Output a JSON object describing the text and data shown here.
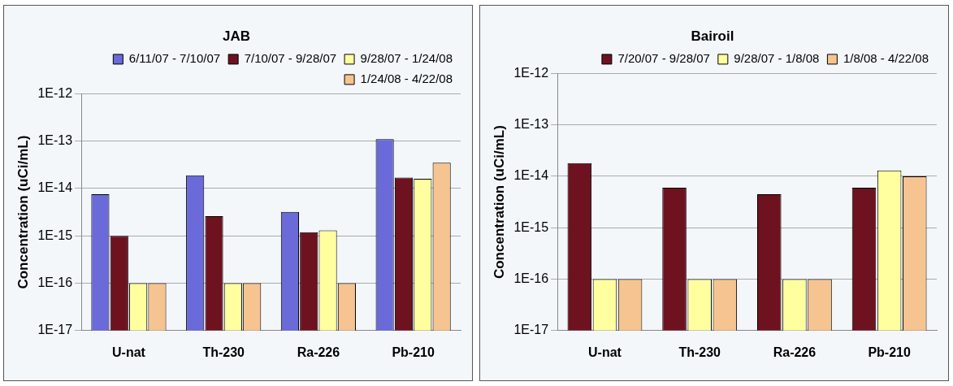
{
  "chart_data": [
    {
      "type": "bar",
      "title": "JAB",
      "ylabel": "Concentration (uCi/mL)",
      "categories": [
        "U-nat",
        "Th-230",
        "Ra-226",
        "Pb-210"
      ],
      "log": "y",
      "grid": "y",
      "legend": "top right",
      "ylim": [
        1e-17,
        1e-12
      ],
      "yticks": [
        {
          "value": 1e-17,
          "label": "1E-17"
        },
        {
          "value": 1e-16,
          "label": "1E-16"
        },
        {
          "value": 1e-15,
          "label": "1E-15"
        },
        {
          "value": 1e-14,
          "label": "1E-14"
        },
        {
          "value": 1e-13,
          "label": "1E-13"
        },
        {
          "value": 1e-12,
          "label": "1E-12"
        }
      ],
      "series": [
        {
          "name": "6/11/07 - 7/10/07",
          "color": "#6a6ad8",
          "values": [
            7.6e-15,
            1.9e-14,
            3.2e-15,
            1.1e-13
          ]
        },
        {
          "name": "7/10/07 - 9/28/07",
          "color": "#6e1220",
          "values": [
            1e-15,
            2.6e-15,
            1.2e-15,
            1.7e-14
          ]
        },
        {
          "name": "9/28/07 - 1/24/08",
          "color": "#ffffa0",
          "values": [
            1e-16,
            1e-16,
            1.3e-15,
            1.6e-14
          ]
        },
        {
          "name": "1/24/08 - 4/22/08",
          "color": "#f6c490",
          "values": [
            1e-16,
            1e-16,
            1e-16,
            3.5e-14
          ]
        }
      ]
    },
    {
      "type": "bar",
      "title": "Bairoil",
      "ylabel": "Concentration (uCi/mL)",
      "categories": [
        "U-nat",
        "Th-230",
        "Ra-226",
        "Pb-210"
      ],
      "log": "y",
      "grid": "y",
      "legend": "top right",
      "ylim": [
        1e-17,
        1e-12
      ],
      "yticks": [
        {
          "value": 1e-17,
          "label": "1E-17"
        },
        {
          "value": 1e-16,
          "label": "1E-16"
        },
        {
          "value": 1e-15,
          "label": "1E-15"
        },
        {
          "value": 1e-14,
          "label": "1E-14"
        },
        {
          "value": 1e-13,
          "label": "1E-13"
        },
        {
          "value": 1e-12,
          "label": "1E-12"
        }
      ],
      "series": [
        {
          "name": "7/20/07 - 9/28/07",
          "color": "#6e1220",
          "values": [
            1.8e-14,
            6e-15,
            4.5e-15,
            6e-15
          ]
        },
        {
          "name": "9/28/07 - 1/8/08",
          "color": "#ffffa0",
          "values": [
            1e-16,
            1e-16,
            1e-16,
            1.3e-14
          ]
        },
        {
          "name": "1/8/08 - 4/22/08",
          "color": "#f6c490",
          "values": [
            1e-16,
            1e-16,
            1e-16,
            1e-14
          ]
        }
      ]
    }
  ]
}
